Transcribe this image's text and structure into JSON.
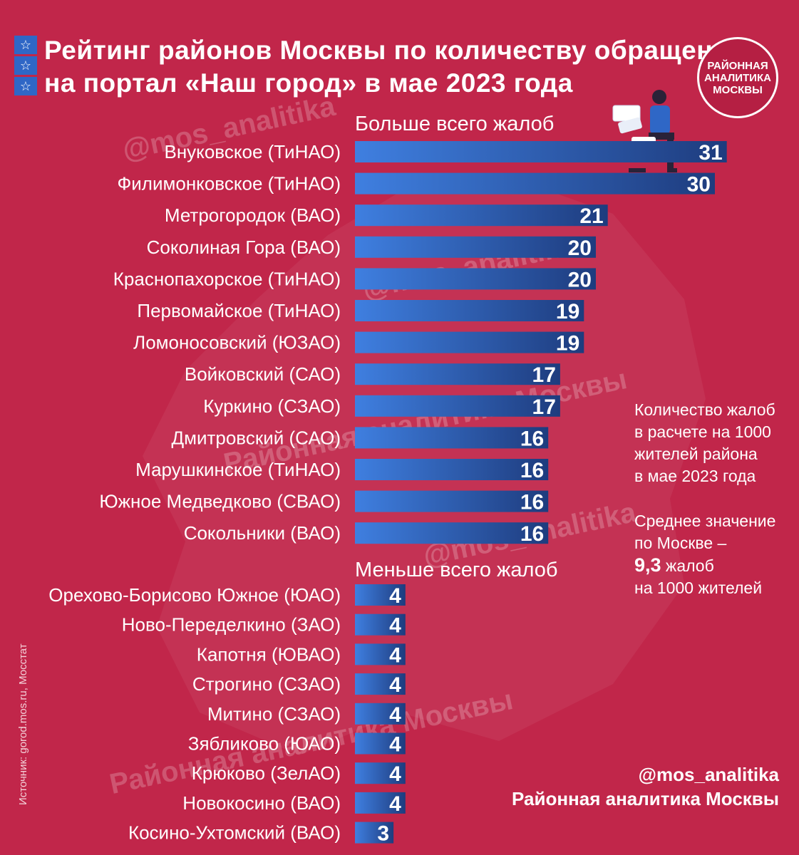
{
  "header": {
    "title_line1": "Рейтинг районов Москвы по количеству обращений",
    "title_line2": "на портал «Наш город» в мае 2023 года",
    "star_icon": "☆",
    "logo_line1": "РАЙОННАЯ",
    "logo_line2": "АНАЛИТИКА",
    "logo_line3": "МОСКВЫ"
  },
  "sections": {
    "top_heading": "Больше всего жалоб",
    "bottom_heading": "Меньше всего жалоб"
  },
  "watermarks": {
    "handle": "@mos_analitika",
    "brand": "Районная аналитика Москвы"
  },
  "note": {
    "line1": "Количество жалоб",
    "line2": "в расчете на 1000",
    "line3": "жителей района",
    "line4": "в мае 2023 года",
    "avg_line1": "Среднее значение",
    "avg_line2": "по Москве –",
    "avg_value": "9,3",
    "avg_line3_suffix": " жалоб",
    "avg_line4": "на 1000 жителей"
  },
  "source": "Источник: gorod.mos.ru, Мосстат",
  "footer": {
    "handle": "@mos_analitika",
    "brand": "Районная аналитика Москвы"
  },
  "colors": {
    "background": "#C1264A",
    "bar_start": "#3F7FE0",
    "bar_end": "#1E3C7E",
    "text": "#FFFFFF"
  },
  "chart_data": [
    {
      "type": "bar",
      "orientation": "horizontal",
      "title": "Больше всего жалоб",
      "categories": [
        "Внуковское (ТиНАО)",
        "Филимонковское (ТиНАО)",
        "Метрогородок (ВАО)",
        "Соколиная Гора (ВАО)",
        "Краснопахорское (ТиНАО)",
        "Первомайское (ТиНАО)",
        "Ломоносовский (ЮЗАО)",
        "Войковский (САО)",
        "Куркино (СЗАО)",
        "Дмитровский (САО)",
        "Марушкинское (ТиНАО)",
        "Южное Медведково (СВАО)",
        "Сокольники (ВАО)"
      ],
      "values": [
        31,
        30,
        21,
        20,
        20,
        19,
        19,
        17,
        17,
        16,
        16,
        16,
        16
      ],
      "ylabel": "Количество жалоб на 1000 жителей"
    },
    {
      "type": "bar",
      "orientation": "horizontal",
      "title": "Меньше всего жалоб",
      "categories": [
        "Орехово-Борисово Южное (ЮАО)",
        "Ново-Переделкино (ЗАО)",
        "Капотня (ЮВАО)",
        "Строгино (СЗАО)",
        "Митино (СЗАО)",
        "Зябликово (ЮАО)",
        "Крюково (ЗелАО)",
        "Новокосино (ВАО)",
        "Косино-Ухтомский (ВАО)"
      ],
      "values": [
        4,
        4,
        4,
        4,
        4,
        4,
        4,
        4,
        3
      ],
      "ylabel": "Количество жалоб на 1000 жителей"
    }
  ]
}
